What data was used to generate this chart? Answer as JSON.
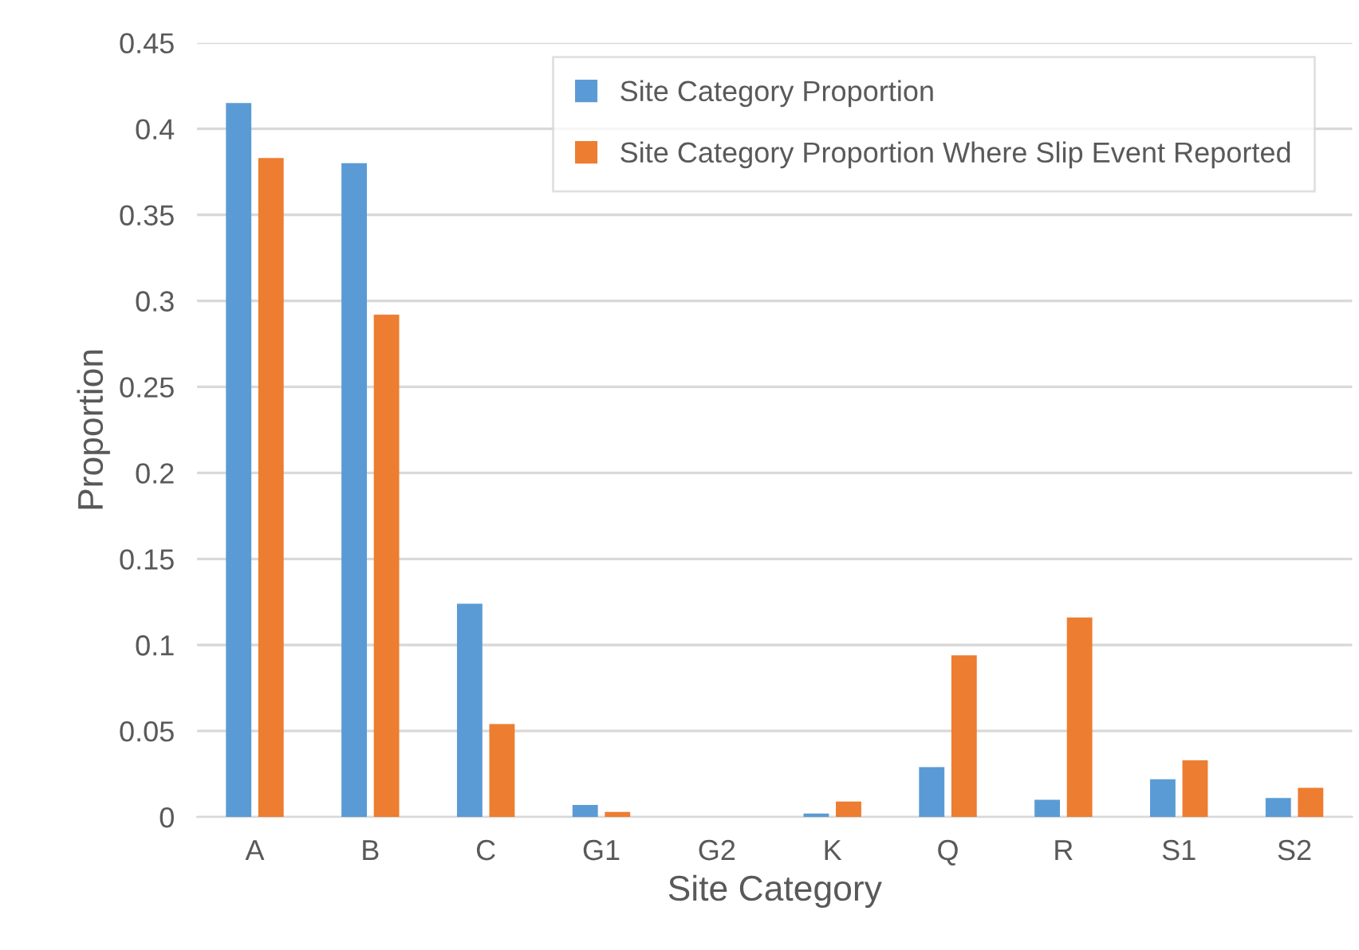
{
  "chart_data": {
    "type": "bar",
    "xlabel": "Site Category",
    "ylabel": "Proportion",
    "categories": [
      "A",
      "B",
      "C",
      "G1",
      "G2",
      "K",
      "Q",
      "R",
      "S1",
      "S2"
    ],
    "series": [
      {
        "name": "Site Category Proportion",
        "color": "#5b9bd5",
        "values": [
          0.415,
          0.38,
          0.124,
          0.007,
          0,
          0.002,
          0.029,
          0.01,
          0.022,
          0.011
        ]
      },
      {
        "name": "Site Category Proportion Where Slip Event Reported",
        "color": "#ed7d31",
        "values": [
          0.383,
          0.292,
          0.054,
          0.003,
          0,
          0.009,
          0.094,
          0.116,
          0.033,
          0.017
        ]
      }
    ],
    "ylim": [
      0,
      0.45
    ],
    "yticks": [
      {
        "value": 0,
        "label": "0"
      },
      {
        "value": 0.05,
        "label": "0.05"
      },
      {
        "value": 0.1,
        "label": "0.1"
      },
      {
        "value": 0.15,
        "label": "0.15"
      },
      {
        "value": 0.2,
        "label": "0.2"
      },
      {
        "value": 0.25,
        "label": "0.25"
      },
      {
        "value": 0.3,
        "label": "0.3"
      },
      {
        "value": 0.35,
        "label": "0.35"
      },
      {
        "value": 0.4,
        "label": "0.4"
      },
      {
        "value": 0.45,
        "label": "0.45"
      }
    ],
    "grid": "y",
    "legend": "top right"
  }
}
